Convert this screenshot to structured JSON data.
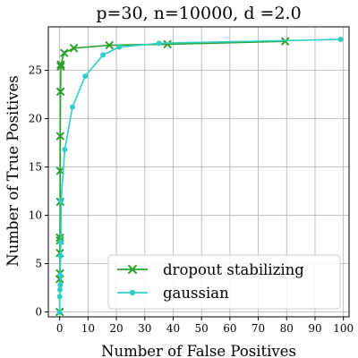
{
  "chart_data": {
    "type": "line",
    "title": "p=30, n=10000, d =2.0",
    "xlabel": "Number of False Positives",
    "ylabel": "Number of True Positives",
    "xlim": [
      -4,
      102
    ],
    "ylim": [
      -0.5,
      29.5
    ],
    "xticks": [
      0,
      10,
      20,
      30,
      40,
      50,
      60,
      70,
      80,
      90,
      100
    ],
    "yticks": [
      0,
      5,
      10,
      15,
      20,
      25
    ],
    "grid": true,
    "legend_position": "lower-right",
    "series": [
      {
        "name": "dropout stabilizing",
        "color": "#2ca02c",
        "marker": "x",
        "x": [
          0,
          0,
          0.1,
          0.1,
          0.1,
          0.1,
          0.2,
          0.2,
          0.2,
          0.3,
          0.4,
          0.4,
          1.6,
          5.0,
          17.5,
          38.0,
          79.5
        ],
        "y": [
          0,
          3.4,
          4.0,
          6.1,
          7.4,
          7.7,
          11.4,
          14.6,
          18.2,
          22.8,
          25.4,
          25.6,
          26.8,
          27.3,
          27.6,
          27.7,
          28.0
        ]
      },
      {
        "name": "gaussian",
        "color": "#2ecfc8",
        "marker": "o",
        "x": [
          0,
          0,
          0.1,
          0.2,
          0.2,
          0.3,
          0.4,
          0.5,
          1.8,
          4.5,
          9.0,
          15.3,
          21.0,
          35.0,
          99.0
        ],
        "y": [
          0,
          1.6,
          2.3,
          2.8,
          3.8,
          5.8,
          7.2,
          11.5,
          16.8,
          21.2,
          24.4,
          26.6,
          27.4,
          27.8,
          28.2
        ]
      }
    ]
  }
}
